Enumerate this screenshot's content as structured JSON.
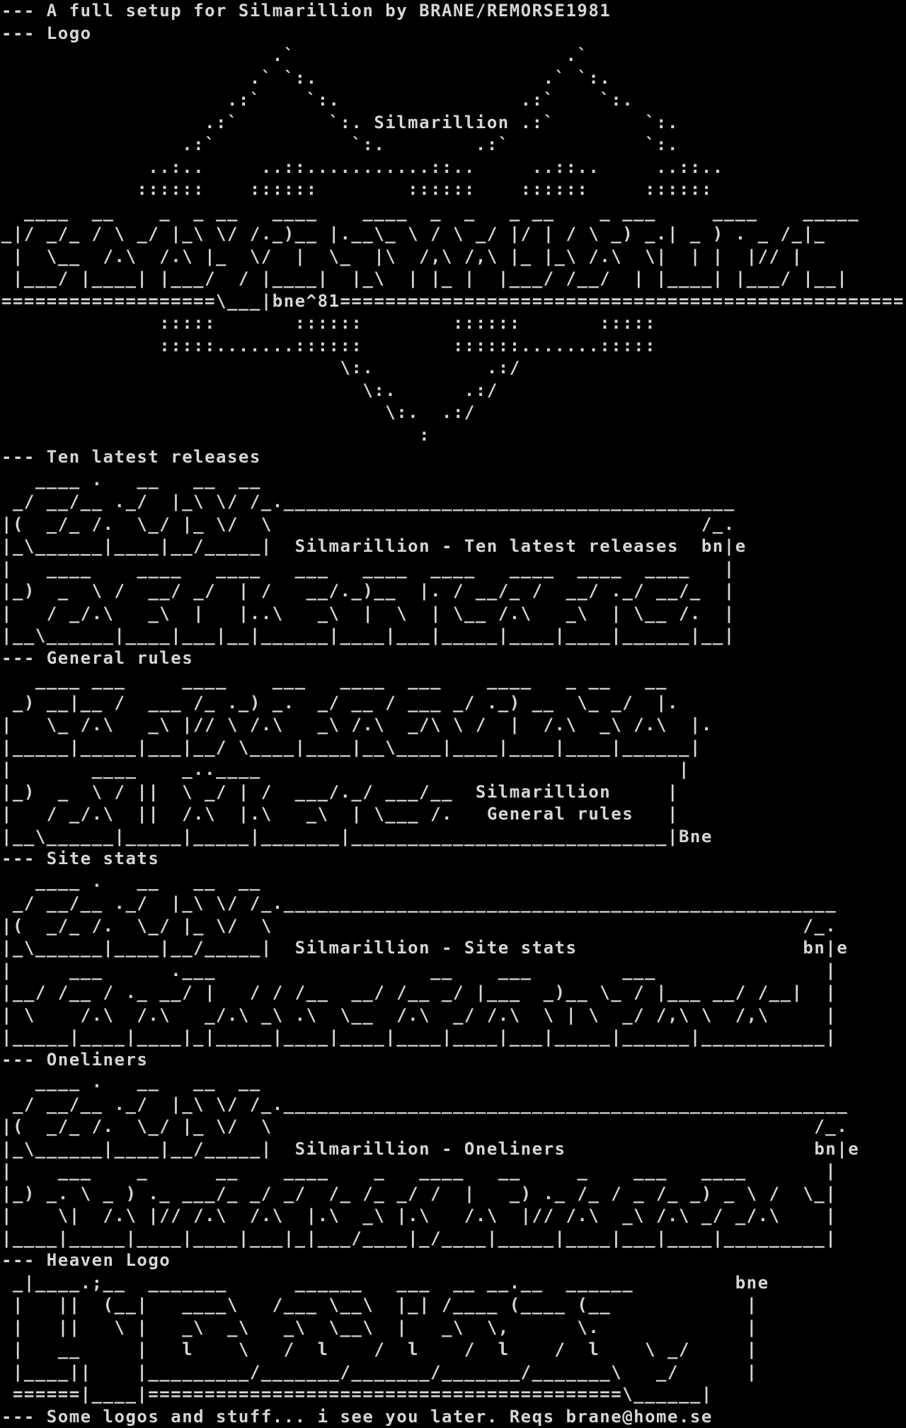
{
  "palette": {
    "background": "#000000",
    "foreground": "#d6d6d6"
  },
  "header": {
    "title_line": "--- A full setup for Silmarillion by BRANE/REMORSE1981"
  },
  "logo": {
    "label": "--- Logo",
    "art": [
      "                        .`                        .`",
      "                      .` `:.                    .` `:.",
      "                    .:`    `:.                .:`    `:.",
      "                  .:`        `:. Silmarillion .:`        `:.",
      "                .:`            `:.        .:`            `:.",
      "             ..:..     ..::...........::..     ..::..     ..::..",
      "            ::::::    ::::::        ::::::    ::::::     ::::::",
      "  ____  __    _  _ __   ____    ____  _  _   _ __    _ ___     ____    _____",
      "_|/ _/_ / \\ _/ |_\\ \\/ /._)__ |.__\\_ \\ / \\ _/ |/ | / \\ _) _.| _ ) . _ /_|_",
      " |  \\__  /.\\  /.\\ |_  \\/  |  \\_  |\\  /,\\ /,\\ |_ |_\\ /.\\  \\|  | |  |// |",
      " |___/ |____| |___/  / |____|  |_\\  | |_ |  |___/ /__/  | |____| |___/ |__|",
      "===================\\___|bne^81==================================================",
      "              :::::       ::::::        ::::::       :::::",
      "              :::::.......::::::        ::::::.......:::::",
      "                              \\:.          .:/",
      "                                \\:.      .:/",
      "                                  \\:.  .:/",
      "                                     :"
    ]
  },
  "ten_latest": {
    "label": "--- Ten latest releases",
    "title": "Silmarillion - Ten latest releases",
    "signature": "bn|e",
    "art": [
      "   ____ .   __   __  __",
      " _/ __/__ ._/  |_\\ \\/ /_.________________________________________",
      "|(  _/_ /.  \\_/ |_ \\/  \\                                      /_.",
      "|_\\______|____|__/_____|  Silmarillion - Ten latest releases  bn|e",
      "|   ____    ____   ____   ___   ____  ____   ____  ____  ____   |",
      "|_)  _  \\ /  __/ _/  | /   __/._)__  |. / __/_ /  __/ ._/ __/_  |",
      "|   / _/.\\   _\\  |   |..\\   _\\  |  \\  | \\__ /.\\   _\\  | \\__ /.  |",
      "|__\\______|____|___|__|______|____|___|_____|____|____|______|__|"
    ]
  },
  "general_rules": {
    "label": "--- General rules",
    "title_line1": "Silmarillion",
    "title_line2": "General rules",
    "signature": "|Bne",
    "art": [
      "   ____ ___     ____    ___   ____  ___    ____   _ __   __",
      " _) __|__ /  ___ /_ ._) _.  _/ __ / ___ _/ ._) __  \\_ _/  |.",
      "|   \\_ /.\\   _\\ |// \\ /.\\   _\\ /.\\  _/\\ \\ /  |  /.\\  _\\ /.\\  |.",
      "|_____|_____|___|__/ \\____|____|__\\____|____|____|____|______|",
      "|       ____    _..____                                     |",
      "|_)  _  \\ / ||  \\ _/ | /  ___/._/ ___/__  Silmarillion     |",
      "|   / _/.\\  ||  /.\\  |.\\   _\\  | \\___ /.   General rules   |",
      "|__\\______|_____|_____|_______|____________________________|Bne"
    ]
  },
  "site_stats": {
    "label": "--- Site stats",
    "title": "Silmarillion - Site stats",
    "signature": "bn|e",
    "art": [
      "   ____ .   __   __  __",
      " _/ __/__ ._/  |_\\ \\/ /_._________________________________________________",
      "|(  _/_ /.  \\_/ |_ \\/  \\                                               /_.",
      "|_\\______|____|__/_____|  Silmarillion - Site stats                    bn|e",
      "|     ___      .___                   __    ___        ___               |",
      "|__/ /__ / ._ __/ |   / / /__  __/ /__ _/ |___  _)__ \\_ / |___ __/ /__|  |",
      "| \\    /.\\  /.\\   _/.\\ _\\ .\\  \\__  /.\\  _/ /.\\  \\ | \\  _/ /,\\ \\  /,\\     |",
      "|_____|____|____|_|_____|____|____|____|____|___|_____|______|___________|"
    ]
  },
  "oneliners": {
    "label": "--- Oneliners",
    "title": "Silmarillion - Oneliners",
    "signature": "bn|e",
    "art": [
      "   ____ .   __   __  __",
      " _/ __/__ ._/  |_\\ \\/ /_.__________________________________________________",
      "|(  _/_ /.  \\_/ |_ \\/  \\                                                /_.",
      "|_\\______|____|__/_____|  Silmarillion - Oneliners                      bn|e",
      "|    ___    _      __    ____    _   ____   __     _    ___   ____       |",
      "|_) _. \\ _ ) ._ ___/_ _/ _/  /_ /_ _/ /  |   _) ._ /_ / _ /_ _) _ \\ /  \\_|",
      "|    \\|  /.\\ |// /.\\  /.\\  |.\\  _\\ |.\\   /.\\  |// /.\\  _\\ /.\\ _/ _/.\\    |",
      "|____|_____|____|____|___|_|___/____|_/____|_____|____|___|____|_________|"
    ]
  },
  "heaven_logo": {
    "label": "--- Heaven Logo",
    "signature": "bne",
    "art": [
      " _|____.;__  _______      ______   ___  __ __.__  ______         bne",
      " |   ||  (__|   ____\\   /___ \\__\\  |_| /____ (____ (__            |",
      " |   ||   \\ |   _\\  _\\   _\\  \\__\\  |   _\\  \\,      \\.             |",
      " |   __     |   l    \\   /  l    /  l    /  l    /  l    \\ _/     |",
      " |____||    |_________/_______/_______/_______/_______\\   _/      |",
      " ======|____|==========================================\\______|"
    ]
  },
  "footer": {
    "line": "--- Some logos and stuff... i see you later. Reqs brane@home.se"
  }
}
